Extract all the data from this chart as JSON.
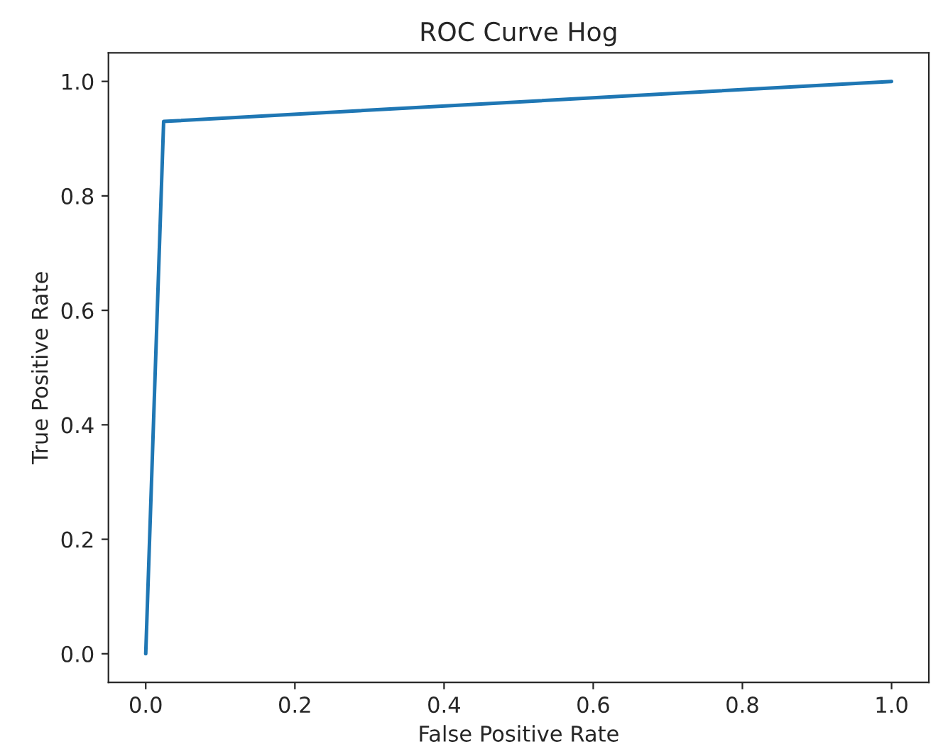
{
  "chart_data": {
    "type": "line",
    "title": "ROC Curve Hog",
    "xlabel": "False Positive Rate",
    "ylabel": "True Positive Rate",
    "x": [
      0,
      0.024,
      1
    ],
    "series": [
      {
        "color": "#1f77b4",
        "values": [
          0,
          0.93,
          1
        ]
      }
    ],
    "xlim": [
      -0.05,
      1.05
    ],
    "ylim": [
      -0.05,
      1.05
    ],
    "xticks": [
      {
        "value": 0,
        "label": "0.0"
      },
      0.2,
      0.4,
      0.6,
      0.8,
      {
        "value": 1,
        "label": "1.0"
      }
    ],
    "yticks": [
      {
        "value": 0,
        "label": "0.0"
      },
      0.2,
      0.4,
      0.6,
      0.8,
      {
        "value": 1,
        "label": "1.0"
      }
    ],
    "grid": false
  }
}
